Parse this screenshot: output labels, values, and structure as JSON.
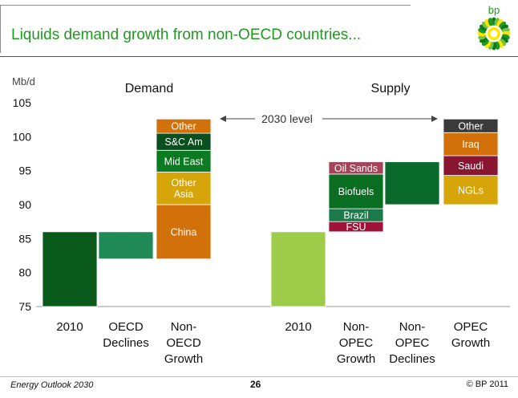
{
  "slide": {
    "title": "Liquids demand growth from non-OECD countries...",
    "logo_text": "bp",
    "footer_left": "Energy Outlook 2030",
    "page_number": "26",
    "footer_right": "© BP 2011"
  },
  "chart_data": {
    "type": "waterfall",
    "ylabel": "Mb/d",
    "ylim": [
      75,
      105
    ],
    "yticks": [
      75,
      80,
      85,
      90,
      95,
      100,
      105
    ],
    "panel_titles": [
      "Demand",
      "Supply"
    ],
    "annotation": "2030 level",
    "categories": [
      {
        "label": [
          "2010"
        ],
        "segments": [
          {
            "name": "",
            "from": 75,
            "to": 86,
            "color": "#0a5a1c"
          }
        ]
      },
      {
        "label": [
          "OECD",
          "Declines"
        ],
        "segments": [
          {
            "name": "",
            "from": 82,
            "to": 86,
            "color": "#1f8a55"
          }
        ]
      },
      {
        "label": [
          "Non-",
          "OECD",
          "Growth"
        ],
        "segments": [
          {
            "name": "China",
            "from": 82,
            "to": 90,
            "color": "#d2700a"
          },
          {
            "name": "Other Asia",
            "from": 90,
            "to": 94.8,
            "color": "#d6a50a"
          },
          {
            "name": "Mid East",
            "from": 94.8,
            "to": 98,
            "color": "#0c7a22"
          },
          {
            "name": "S&C Am",
            "from": 98,
            "to": 100.5,
            "color": "#0a4f1e"
          },
          {
            "name": "Other",
            "from": 100.5,
            "to": 102.6,
            "color": "#d2700a"
          }
        ]
      },
      {
        "label": [
          "2010"
        ],
        "segments": [
          {
            "name": "",
            "from": 75,
            "to": 86,
            "color": "#9ecc4a"
          }
        ]
      },
      {
        "label": [
          "Non-",
          "OPEC",
          "Growth"
        ],
        "segments": [
          {
            "name": "FSU",
            "from": 86,
            "to": 87.5,
            "color": "#a01238"
          },
          {
            "name": "Brazil",
            "from": 87.5,
            "to": 89.4,
            "color": "#1a7a4a"
          },
          {
            "name": "Biofuels",
            "from": 89.4,
            "to": 94.5,
            "color": "#0a6e22"
          },
          {
            "name": "Oil Sands",
            "from": 94.5,
            "to": 96.3,
            "color": "#a44458"
          }
        ]
      },
      {
        "label": [
          "Non-",
          "OPEC",
          "Declines"
        ],
        "segments": [
          {
            "name": "",
            "from": 90,
            "to": 96.3,
            "color": "#0a6a2c"
          }
        ]
      },
      {
        "label": [
          "OPEC",
          "Growth"
        ],
        "segments": [
          {
            "name": "NGLs",
            "from": 90,
            "to": 94.3,
            "color": "#d6a50a"
          },
          {
            "name": "Saudi",
            "from": 94.3,
            "to": 97.2,
            "color": "#8a1530"
          },
          {
            "name": "Iraq",
            "from": 97.2,
            "to": 100.6,
            "color": "#d2700a"
          },
          {
            "name": "Other",
            "from": 100.6,
            "to": 102.6,
            "color": "#3a3a3a"
          }
        ]
      }
    ]
  }
}
